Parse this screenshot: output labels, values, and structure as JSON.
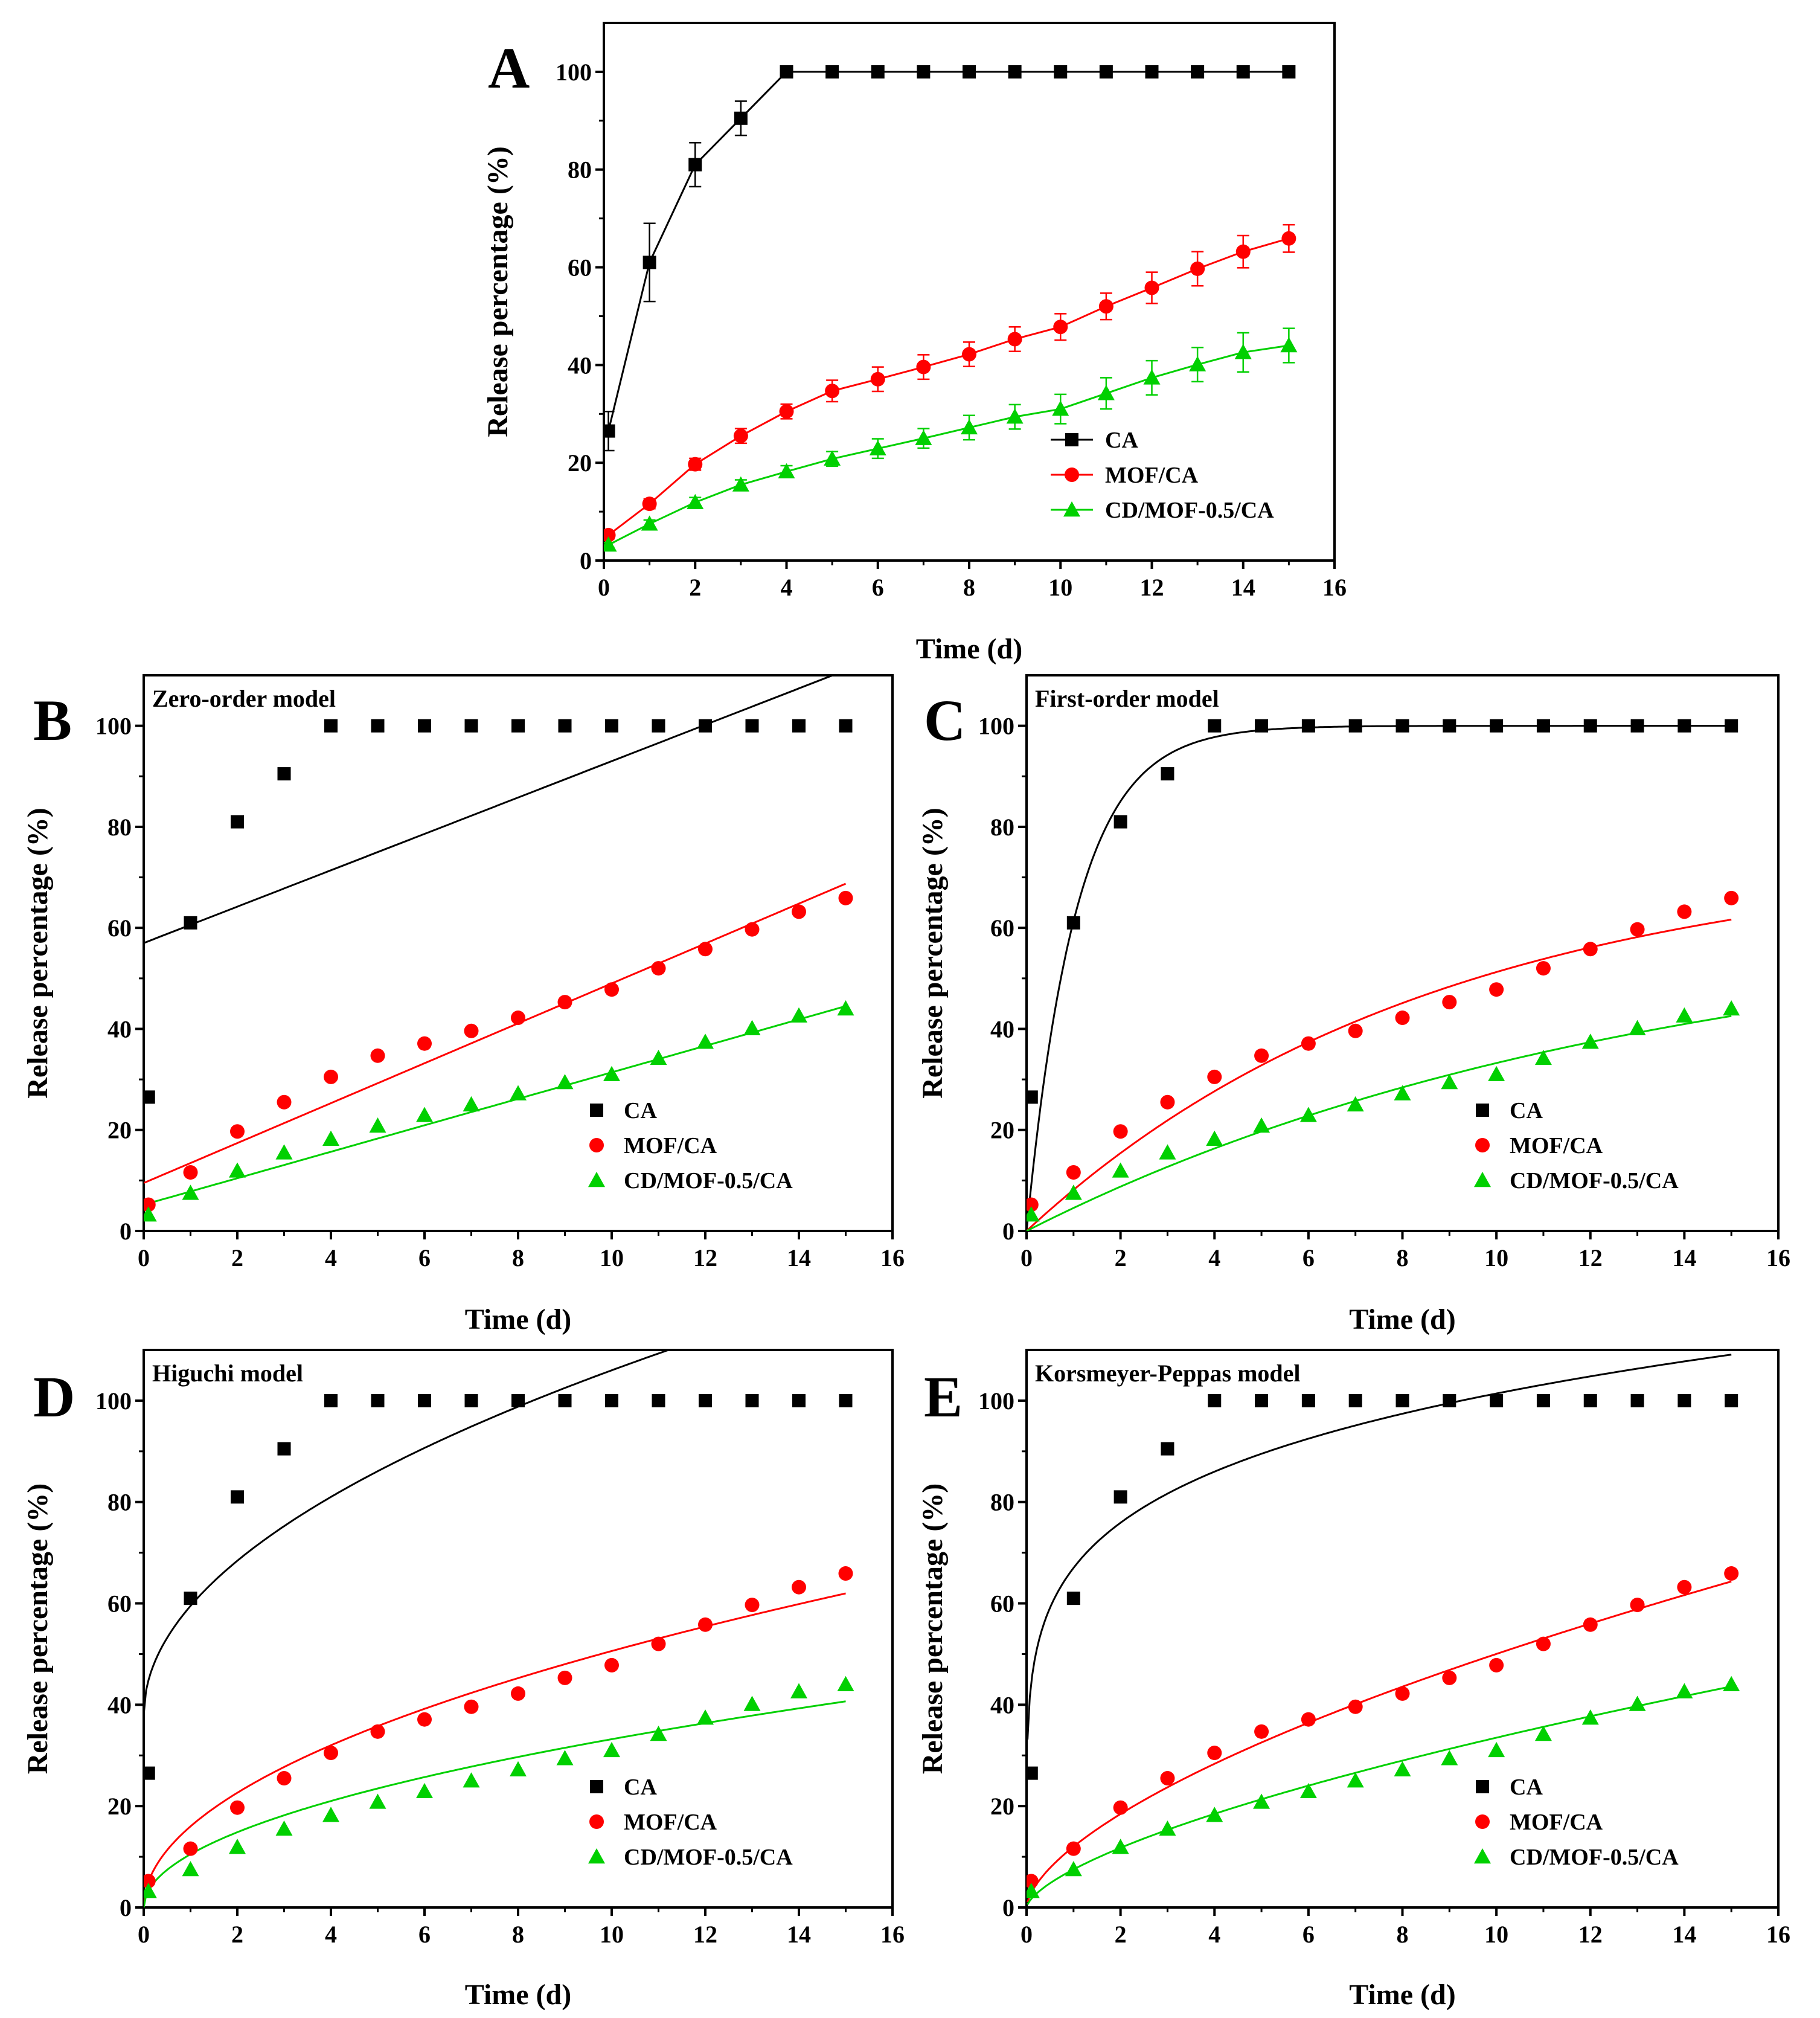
{
  "figure": {
    "colors": {
      "CA": "#000000",
      "MOF/CA": "#ff0000",
      "CD/MOF-0.5/CA": "#00d000"
    }
  },
  "chart_data": [
    {
      "panel": "A",
      "type": "line",
      "title": "",
      "xlabel": "Time (d)",
      "ylabel": "Release percentage (%)",
      "xlim": [
        0,
        16
      ],
      "ylim": [
        0,
        110
      ],
      "xticks": [
        0,
        2,
        4,
        6,
        8,
        10,
        12,
        14,
        16
      ],
      "yticks": [
        0,
        20,
        40,
        60,
        80,
        100
      ],
      "legend": [
        "CA",
        "MOF/CA",
        "CD/MOF-0.5/CA"
      ],
      "legend_position": "bottom-right",
      "series": [
        {
          "name": "CA",
          "marker": "square",
          "x": [
            0.1,
            1,
            2,
            3,
            4,
            5,
            6,
            7,
            8,
            9,
            10,
            11,
            12,
            13,
            14,
            15
          ],
          "values": [
            26.5,
            61,
            81,
            90.5,
            100,
            100,
            100,
            100,
            100,
            100,
            100,
            100,
            100,
            100,
            100,
            100
          ],
          "errors": [
            4,
            8,
            4.5,
            3.5,
            0,
            0,
            0,
            0,
            0,
            0,
            0,
            0,
            0,
            0,
            0,
            0
          ]
        },
        {
          "name": "MOF/CA",
          "marker": "circle",
          "x": [
            0.1,
            1,
            2,
            3,
            4,
            5,
            6,
            7,
            8,
            9,
            10,
            11,
            12,
            13,
            14,
            15
          ],
          "values": [
            5.2,
            11.6,
            19.7,
            25.5,
            30.5,
            34.7,
            37.1,
            39.6,
            42.2,
            45.3,
            47.8,
            52,
            55.8,
            59.7,
            63.2,
            65.9
          ],
          "errors": [
            0.8,
            1,
            1.2,
            1.5,
            1.5,
            2.2,
            2.5,
            2.5,
            2.5,
            2.5,
            2.7,
            2.7,
            3.2,
            3.5,
            3.3,
            2.8
          ]
        },
        {
          "name": "CD/MOF-0.5/CA",
          "marker": "triangle",
          "x": [
            0.1,
            1,
            2,
            3,
            4,
            5,
            6,
            7,
            8,
            9,
            10,
            11,
            12,
            13,
            14,
            15
          ],
          "values": [
            3.2,
            7.5,
            11.9,
            15.5,
            18.2,
            20.8,
            22.9,
            25,
            27.2,
            29.4,
            31,
            34.2,
            37.4,
            40.1,
            42.6,
            44
          ],
          "errors": [
            0.5,
            0.8,
            1,
            1,
            1.2,
            1.5,
            2,
            2,
            2.5,
            2.5,
            3,
            3.2,
            3.5,
            3.5,
            4,
            3.5
          ]
        }
      ]
    },
    {
      "panel": "B",
      "type": "scatter",
      "title": "Zero-order model",
      "xlabel": "Time (d)",
      "ylabel": "Release percentage (%)",
      "xlim": [
        0,
        16
      ],
      "ylim": [
        0,
        110
      ],
      "xticks": [
        0,
        2,
        4,
        6,
        8,
        10,
        12,
        14,
        16
      ],
      "yticks": [
        0,
        20,
        40,
        60,
        80,
        100
      ],
      "legend": [
        "CA",
        "MOF/CA",
        "CD/MOF-0.5/CA"
      ],
      "legend_position": "bottom-right",
      "fit": {
        "model": "zero",
        "params": {
          "CA": [
            57,
            3.6
          ],
          "MOF/CA": [
            9.5,
            3.95
          ],
          "CD/MOF-0.5/CA": [
            5.2,
            2.62
          ]
        }
      },
      "series": [
        {
          "name": "CA",
          "marker": "square",
          "x": [
            0.1,
            1,
            2,
            3,
            4,
            5,
            6,
            7,
            8,
            9,
            10,
            11,
            12,
            13,
            14,
            15
          ],
          "values": [
            26.5,
            61,
            81,
            90.5,
            100,
            100,
            100,
            100,
            100,
            100,
            100,
            100,
            100,
            100,
            100,
            100
          ]
        },
        {
          "name": "MOF/CA",
          "marker": "circle",
          "x": [
            0.1,
            1,
            2,
            3,
            4,
            5,
            6,
            7,
            8,
            9,
            10,
            11,
            12,
            13,
            14,
            15
          ],
          "values": [
            5.2,
            11.6,
            19.7,
            25.5,
            30.5,
            34.7,
            37.1,
            39.6,
            42.2,
            45.3,
            47.8,
            52,
            55.8,
            59.7,
            63.2,
            65.9
          ]
        },
        {
          "name": "CD/MOF-0.5/CA",
          "marker": "triangle",
          "x": [
            0.1,
            1,
            2,
            3,
            4,
            5,
            6,
            7,
            8,
            9,
            10,
            11,
            12,
            13,
            14,
            15
          ],
          "values": [
            3.2,
            7.5,
            11.9,
            15.5,
            18.2,
            20.8,
            22.9,
            25,
            27.2,
            29.4,
            31,
            34.2,
            37.4,
            40.1,
            42.6,
            44
          ]
        }
      ]
    },
    {
      "panel": "C",
      "type": "scatter",
      "title": "First-order model",
      "xlabel": "Time (d)",
      "ylabel": "Release percentage (%)",
      "xlim": [
        0,
        16
      ],
      "ylim": [
        0,
        110
      ],
      "xticks": [
        0,
        2,
        4,
        6,
        8,
        10,
        12,
        14,
        16
      ],
      "yticks": [
        0,
        20,
        40,
        60,
        80,
        100
      ],
      "legend": [
        "CA",
        "MOF/CA",
        "CD/MOF-0.5/CA"
      ],
      "legend_position": "bottom-right",
      "fit": {
        "model": "first",
        "params": {
          "CA": [
            100,
            0.95
          ],
          "MOF/CA": [
            75,
            0.115
          ],
          "CD/MOF-0.5/CA": [
            63,
            0.075
          ]
        }
      },
      "series": [
        {
          "name": "CA",
          "marker": "square",
          "x": [
            0.1,
            1,
            2,
            3,
            4,
            5,
            6,
            7,
            8,
            9,
            10,
            11,
            12,
            13,
            14,
            15
          ],
          "values": [
            26.5,
            61,
            81,
            90.5,
            100,
            100,
            100,
            100,
            100,
            100,
            100,
            100,
            100,
            100,
            100,
            100
          ]
        },
        {
          "name": "MOF/CA",
          "marker": "circle",
          "x": [
            0.1,
            1,
            2,
            3,
            4,
            5,
            6,
            7,
            8,
            9,
            10,
            11,
            12,
            13,
            14,
            15
          ],
          "values": [
            5.2,
            11.6,
            19.7,
            25.5,
            30.5,
            34.7,
            37.1,
            39.6,
            42.2,
            45.3,
            47.8,
            52,
            55.8,
            59.7,
            63.2,
            65.9
          ]
        },
        {
          "name": "CD/MOF-0.5/CA",
          "marker": "triangle",
          "x": [
            0.1,
            1,
            2,
            3,
            4,
            5,
            6,
            7,
            8,
            9,
            10,
            11,
            12,
            13,
            14,
            15
          ],
          "values": [
            3.2,
            7.5,
            11.9,
            15.5,
            18.2,
            20.8,
            22.9,
            25,
            27.2,
            29.4,
            31,
            34.2,
            37.4,
            40.1,
            42.6,
            44
          ]
        }
      ]
    },
    {
      "panel": "D",
      "type": "scatter",
      "title": "Higuchi model",
      "xlabel": "Time (d)",
      "ylabel": "Release percentage (%)",
      "xlim": [
        0,
        16
      ],
      "ylim": [
        0,
        110
      ],
      "xticks": [
        0,
        2,
        4,
        6,
        8,
        10,
        12,
        14,
        16
      ],
      "yticks": [
        0,
        20,
        40,
        60,
        80,
        100
      ],
      "legend": [
        "CA",
        "MOF/CA",
        "CD/MOF-0.5/CA"
      ],
      "legend_position": "bottom-right",
      "fit": {
        "model": "higuchi",
        "params": {
          "CA": [
            38,
            21.5
          ],
          "MOF/CA": [
            0,
            16
          ],
          "CD/MOF-0.5/CA": [
            0,
            10.5
          ]
        }
      },
      "series": [
        {
          "name": "CA",
          "marker": "square",
          "x": [
            0.1,
            1,
            2,
            3,
            4,
            5,
            6,
            7,
            8,
            9,
            10,
            11,
            12,
            13,
            14,
            15
          ],
          "values": [
            26.5,
            61,
            81,
            90.5,
            100,
            100,
            100,
            100,
            100,
            100,
            100,
            100,
            100,
            100,
            100,
            100
          ]
        },
        {
          "name": "MOF/CA",
          "marker": "circle",
          "x": [
            0.1,
            1,
            2,
            3,
            4,
            5,
            6,
            7,
            8,
            9,
            10,
            11,
            12,
            13,
            14,
            15
          ],
          "values": [
            5.2,
            11.6,
            19.7,
            25.5,
            30.5,
            34.7,
            37.1,
            39.6,
            42.2,
            45.3,
            47.8,
            52,
            55.8,
            59.7,
            63.2,
            65.9
          ]
        },
        {
          "name": "CD/MOF-0.5/CA",
          "marker": "triangle",
          "x": [
            0.1,
            1,
            2,
            3,
            4,
            5,
            6,
            7,
            8,
            9,
            10,
            11,
            12,
            13,
            14,
            15
          ],
          "values": [
            3.2,
            7.5,
            11.9,
            15.5,
            18.2,
            20.8,
            22.9,
            25,
            27.2,
            29.4,
            31,
            34.2,
            37.4,
            40.1,
            42.6,
            44
          ]
        }
      ]
    },
    {
      "panel": "E",
      "type": "scatter",
      "title": "Korsmeyer-Peppas model",
      "xlabel": "Time (d)",
      "ylabel": "Release percentage (%)",
      "xlim": [
        0,
        16
      ],
      "ylim": [
        0,
        110
      ],
      "xticks": [
        0,
        2,
        4,
        6,
        8,
        10,
        12,
        14,
        16
      ],
      "yticks": [
        0,
        20,
        40,
        60,
        80,
        100
      ],
      "legend": [
        "CA",
        "MOF/CA",
        "CD/MOF-0.5/CA"
      ],
      "legend_position": "bottom-right",
      "fit": {
        "model": "kp",
        "params": {
          "CA": [
            67,
            0.18
          ],
          "MOF/CA": [
            12,
            0.62
          ],
          "CD/MOF-0.5/CA": [
            7.5,
            0.65
          ]
        }
      },
      "series": [
        {
          "name": "CA",
          "marker": "square",
          "x": [
            0.1,
            1,
            2,
            3,
            4,
            5,
            6,
            7,
            8,
            9,
            10,
            11,
            12,
            13,
            14,
            15
          ],
          "values": [
            26.5,
            61,
            81,
            90.5,
            100,
            100,
            100,
            100,
            100,
            100,
            100,
            100,
            100,
            100,
            100,
            100
          ]
        },
        {
          "name": "MOF/CA",
          "marker": "circle",
          "x": [
            0.1,
            1,
            2,
            3,
            4,
            5,
            6,
            7,
            8,
            9,
            10,
            11,
            12,
            13,
            14,
            15
          ],
          "values": [
            5.2,
            11.6,
            19.7,
            25.5,
            30.5,
            34.7,
            37.1,
            39.6,
            42.2,
            45.3,
            47.8,
            52,
            55.8,
            59.7,
            63.2,
            65.9
          ]
        },
        {
          "name": "CD/MOF-0.5/CA",
          "marker": "triangle",
          "x": [
            0.1,
            1,
            2,
            3,
            4,
            5,
            6,
            7,
            8,
            9,
            10,
            11,
            12,
            13,
            14,
            15
          ],
          "values": [
            3.2,
            7.5,
            11.9,
            15.5,
            18.2,
            20.8,
            22.9,
            25,
            27.2,
            29.4,
            31,
            34.2,
            37.4,
            40.1,
            42.6,
            44
          ]
        }
      ]
    }
  ]
}
